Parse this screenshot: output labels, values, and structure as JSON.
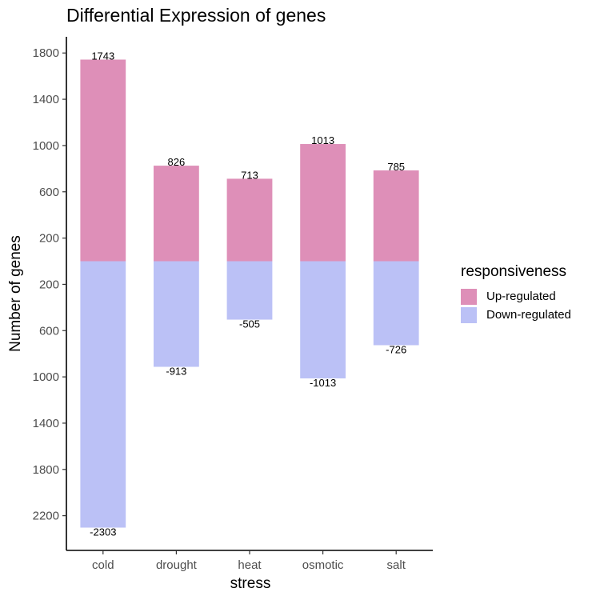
{
  "chart_data": {
    "type": "bar",
    "title": "Differential Expression of genes",
    "xlabel": "stress",
    "ylabel": "Number of genes",
    "categories": [
      "cold",
      "drought",
      "heat",
      "osmotic",
      "salt"
    ],
    "series": [
      {
        "name": "Up-regulated",
        "color": "#DE8FB8",
        "values": [
          1743,
          826,
          713,
          1013,
          785
        ],
        "labels": [
          "1743",
          "826",
          "713",
          "1013",
          "785"
        ]
      },
      {
        "name": "Down-regulated",
        "color": "#BBC1F6",
        "values": [
          -2303,
          -913,
          -505,
          -1013,
          -726
        ],
        "labels": [
          "-2303",
          "-913",
          "-505",
          "-1013",
          "-726"
        ]
      }
    ],
    "yticks": [
      1800,
      1400,
      1000,
      600,
      200,
      -200,
      -600,
      -1000,
      -1400,
      -1800,
      -2200
    ],
    "ytick_labels": [
      "1800",
      "1400",
      "1000",
      "600",
      "200",
      "200",
      "600",
      "1000",
      "1400",
      "1800",
      "2200"
    ],
    "ylim": [
      -2500,
      1940
    ],
    "legend_title": "responsiveness",
    "legend_position": "right"
  }
}
